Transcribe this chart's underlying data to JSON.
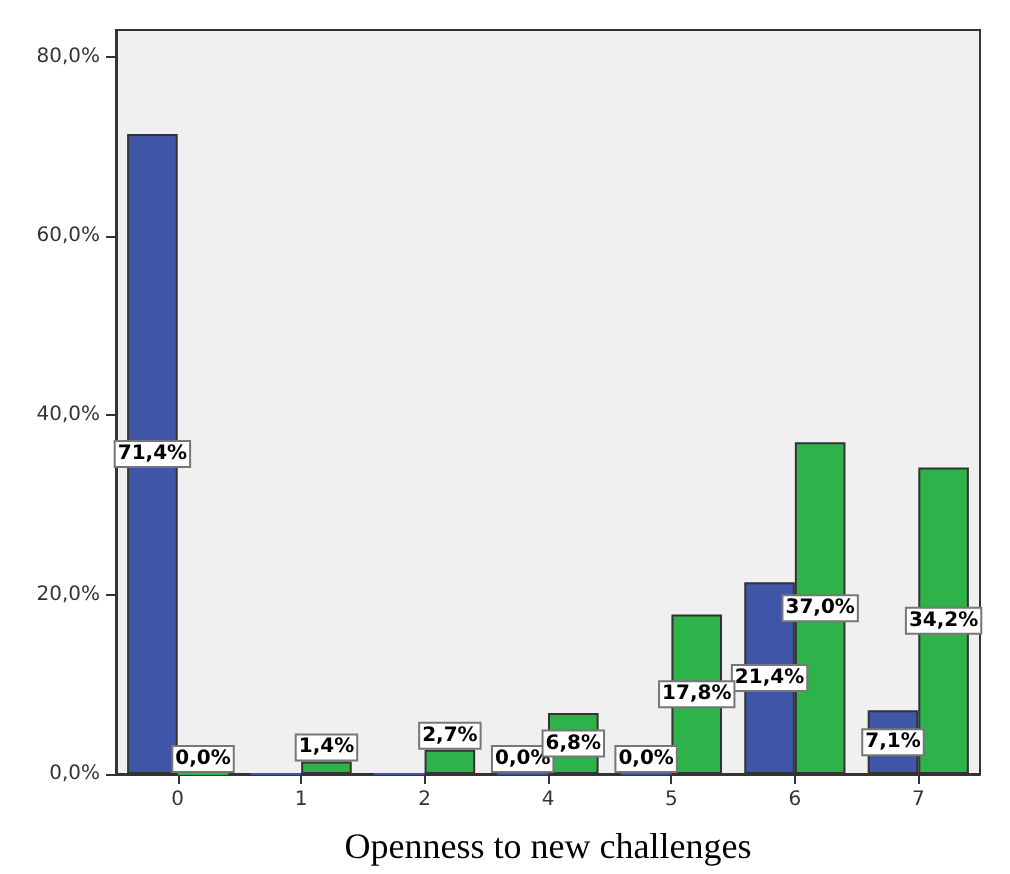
{
  "chart_data": {
    "type": "bar",
    "xlabel": "Openness to new challenges",
    "categories": [
      "0",
      "1",
      "2",
      "4",
      "5",
      "6",
      "7"
    ],
    "series": [
      {
        "color": "#3f55a8",
        "values": [
          71.4,
          0,
          0,
          0,
          0,
          21.4,
          7.1
        ],
        "value_labels": [
          "71,4%",
          null,
          null,
          "0,0%",
          "0,0%",
          "21,4%",
          "7,1%"
        ]
      },
      {
        "color": "#2db34a",
        "values": [
          0,
          1.4,
          2.7,
          6.8,
          17.8,
          37.0,
          34.2
        ],
        "value_labels": [
          "0,0%",
          "1,4%",
          "2,7%",
          "6,8%",
          "17,8%",
          "37,0%",
          "34,2%"
        ]
      }
    ],
    "ylim": [
      0,
      83
    ],
    "yticks": [
      {
        "value": 0,
        "label": "0,0%"
      },
      {
        "value": 20,
        "label": "20,0%"
      },
      {
        "value": 40,
        "label": "40,0%"
      },
      {
        "value": 60,
        "label": "60,0%"
      },
      {
        "value": 80,
        "label": "80,0%"
      }
    ],
    "grid": false
  }
}
